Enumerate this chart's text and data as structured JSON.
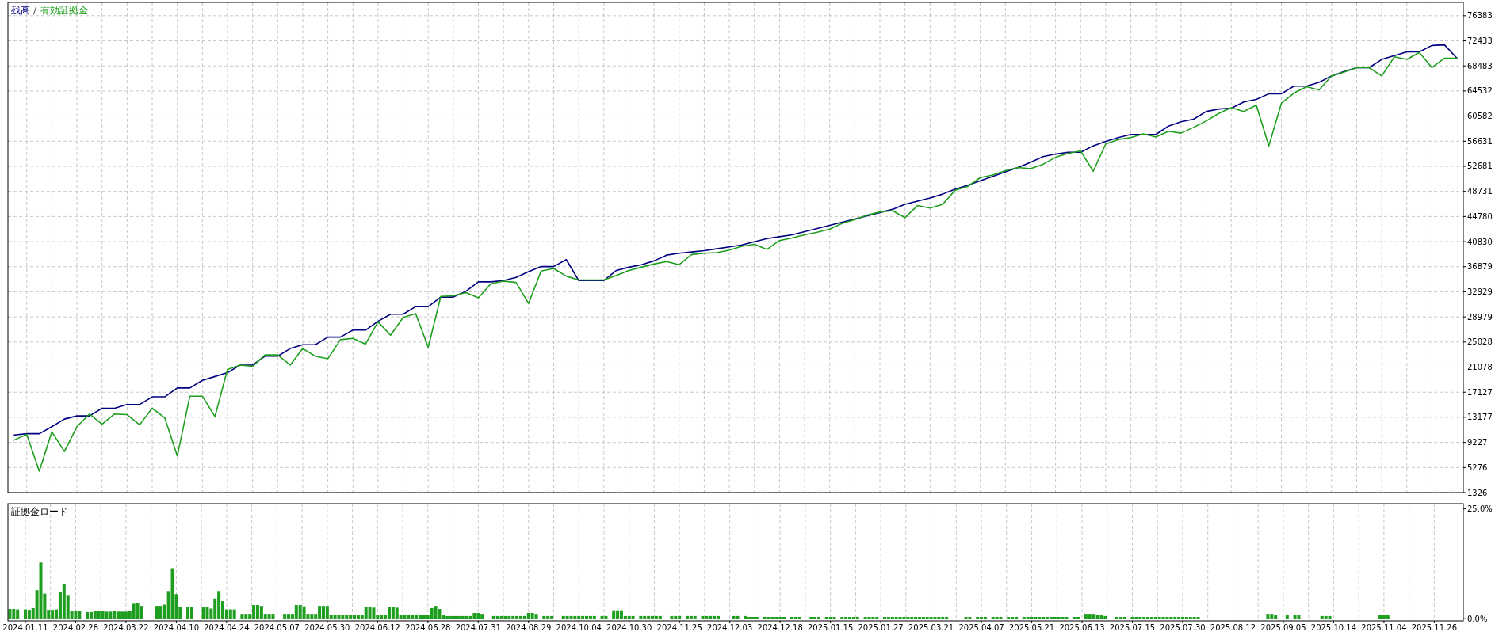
{
  "chart_data": [
    {
      "type": "line",
      "legend": "top left",
      "annotations": [
        "/"
      ],
      "grid": true,
      "tick_labels": "y",
      "ylim": [
        1326,
        78480
      ],
      "categories": [
        null,
        "2024.01.11",
        null,
        null,
        null,
        "2024.02.28",
        null,
        null,
        null,
        "2024.03.22",
        null,
        null,
        null,
        "2024.04.10",
        null,
        null,
        null,
        "2024.04.24",
        null,
        null,
        null,
        "2024.05.07",
        null,
        null,
        null,
        "2024.05.30",
        null,
        null,
        null,
        "2024.06.12",
        null,
        null,
        null,
        "2024.06.28",
        null,
        null,
        null,
        "2024.07.31",
        null,
        null,
        null,
        "2024.08.29",
        null,
        null,
        null,
        "2024.10.04",
        null,
        null,
        null,
        "2024.10.30",
        null,
        null,
        null,
        "2024.11.25",
        null,
        null,
        null,
        "2024.12.03",
        null,
        null,
        null,
        "2024.12.18",
        null,
        null,
        null,
        "2025.01.15",
        null,
        null,
        null,
        "2025.01.27",
        null,
        null,
        null,
        "2025.03.21",
        null,
        null,
        null,
        "2025.04.07",
        null,
        null,
        null,
        "2025.05.21",
        null,
        null,
        null,
        "2025.06.13",
        null,
        null,
        null,
        "2025.07.15",
        null,
        null,
        null,
        "2025.07.30",
        null,
        null,
        null,
        "2025.08.12",
        null,
        null,
        null,
        "2025.09.05",
        null,
        null,
        null,
        "2025.10.14",
        null,
        null,
        null,
        "2025.11.04",
        null,
        null,
        null,
        "2025.11.26",
        null,
        null
      ],
      "yticks": [
        1326,
        5276,
        9227,
        13177,
        17127,
        21078,
        25028,
        28979,
        32929,
        36879,
        40830,
        44780,
        48731,
        52681,
        56631,
        60582,
        64532,
        68483,
        72433,
        76383
      ],
      "series": [
        {
          "name": "残高",
          "color": "#000080",
          "values": [
            10400,
            10600,
            10600,
            11700,
            12900,
            13400,
            13400,
            14600,
            14600,
            15200,
            15200,
            16400,
            16400,
            17800,
            17800,
            19000,
            19600,
            20200,
            21400,
            21400,
            22800,
            22800,
            24000,
            24600,
            24600,
            25800,
            25800,
            26900,
            26900,
            28300,
            29400,
            29400,
            30600,
            30600,
            32100,
            32100,
            33000,
            34500,
            34500,
            34700,
            35200,
            36100,
            36900,
            36900,
            38000,
            34700,
            34700,
            34700,
            36300,
            36800,
            37200,
            37800,
            38700,
            39000,
            39200,
            39400,
            39700,
            40000,
            40300,
            40800,
            41300,
            41600,
            41900,
            42400,
            42900,
            43400,
            43900,
            44400,
            44900,
            45400,
            45900,
            46700,
            47200,
            47700,
            48300,
            49100,
            49700,
            50400,
            51100,
            51800,
            52500,
            53300,
            54200,
            54600,
            54900,
            54900,
            55900,
            56600,
            57200,
            57700,
            57700,
            57700,
            59000,
            59700,
            60100,
            61300,
            61700,
            61800,
            62800,
            63200,
            64100,
            64100,
            65300,
            65300,
            65900,
            66900,
            67600,
            68200,
            68200,
            69500,
            70100,
            70700,
            70700,
            71700,
            71800,
            69700
          ]
        },
        {
          "name": "有効証拠金",
          "color": "#1e9e1e",
          "values": [
            9600,
            10500,
            4700,
            10900,
            7800,
            11700,
            13700,
            12100,
            13700,
            13600,
            12000,
            14600,
            13100,
            7100,
            16500,
            16500,
            13300,
            20700,
            21400,
            21200,
            23000,
            23000,
            21400,
            24000,
            22800,
            22400,
            25400,
            25600,
            24700,
            28200,
            26100,
            28900,
            29500,
            24200,
            32200,
            32300,
            32800,
            32000,
            34200,
            34600,
            34400,
            31100,
            36200,
            36600,
            35400,
            34800,
            34800,
            34800,
            35500,
            36300,
            36800,
            37300,
            37700,
            37200,
            38800,
            39000,
            39100,
            39500,
            40100,
            40400,
            39600,
            41000,
            41400,
            41900,
            42300,
            42800,
            43700,
            44300,
            45000,
            45500,
            45700,
            44600,
            46500,
            46100,
            46700,
            48900,
            49500,
            50900,
            51300,
            52000,
            52500,
            52300,
            53000,
            54100,
            54700,
            55100,
            51900,
            56200,
            56900,
            57200,
            57800,
            57300,
            58200,
            57900,
            58800,
            59800,
            61000,
            61900,
            61300,
            62300,
            55900,
            62600,
            64200,
            65200,
            64700,
            66900,
            67500,
            68200,
            68200,
            66900,
            69900,
            69500,
            70600,
            68200,
            69700,
            69700
          ]
        }
      ]
    },
    {
      "type": "bar",
      "title": "証拠金ロード",
      "color": "#1e9e1e",
      "grid": "x",
      "ylim": [
        -0.5,
        26.2
      ],
      "yticks": [
        {
          "value": 0,
          "label": "0.0%"
        },
        {
          "value": 25,
          "label": "25.0%"
        }
      ],
      "categories": [
        null,
        null,
        null,
        null,
        "2024.01.11",
        null,
        null,
        null,
        null,
        null,
        null,
        null,
        null,
        null,
        null,
        null,
        null,
        "2024.02.28",
        null,
        null,
        null,
        null,
        null,
        null,
        null,
        null,
        null,
        null,
        null,
        null,
        "2024.03.22",
        null,
        null,
        null,
        null,
        null,
        null,
        null,
        null,
        null,
        null,
        null,
        null,
        "2024.04.10",
        null,
        null,
        null,
        null,
        null,
        null,
        null,
        null,
        null,
        null,
        null,
        null,
        "2024.04.24",
        null,
        null,
        null,
        null,
        null,
        null,
        null,
        null,
        null,
        null,
        null,
        null,
        "2024.05.07",
        null,
        null,
        null,
        null,
        null,
        null,
        null,
        null,
        null,
        null,
        null,
        null,
        "2024.05.30",
        null,
        null,
        null,
        null,
        null,
        null,
        null,
        null,
        null,
        null,
        null,
        null,
        "2024.06.12",
        null,
        null,
        null,
        null,
        null,
        null,
        null,
        null,
        null,
        null,
        null,
        null,
        "2024.06.28",
        null,
        null,
        null,
        null,
        null,
        null,
        null,
        null,
        null,
        null,
        null,
        null,
        "2024.07.31",
        null,
        null,
        null,
        null,
        null,
        null,
        null,
        null,
        null,
        null,
        null,
        null,
        "2024.08.29",
        null,
        null,
        null,
        null,
        null,
        null,
        null,
        null,
        null,
        null,
        null,
        null,
        "2024.10.04",
        null,
        null,
        null,
        null,
        null,
        null,
        null,
        null,
        null,
        null,
        null,
        null,
        "2024.10.30",
        null,
        null,
        null,
        null,
        null,
        null,
        null,
        null,
        null,
        null,
        null,
        null,
        "2024.11.25",
        null,
        null,
        null,
        null,
        null,
        null,
        null,
        null,
        null,
        null,
        null,
        null,
        "2024.12.03",
        null,
        null,
        null,
        null,
        null,
        null,
        null,
        null,
        null,
        null,
        null,
        null,
        "2024.12.18",
        null,
        null,
        null,
        null,
        null,
        null,
        null,
        null,
        null,
        null,
        null,
        null,
        "2025.01.15",
        null,
        null,
        null,
        null,
        null,
        null,
        null,
        null,
        null,
        null,
        null,
        null,
        "2025.01.27",
        null,
        null,
        null,
        null,
        null,
        null,
        null,
        null,
        null,
        null,
        null,
        null,
        "2025.03.21",
        null,
        null,
        null,
        null,
        null,
        null,
        null,
        null,
        null,
        null,
        null,
        null,
        "2025.04.07",
        null,
        null,
        null,
        null,
        null,
        null,
        null,
        null,
        null,
        null,
        null,
        null,
        "2025.05.21",
        null,
        null,
        null,
        null,
        null,
        null,
        null,
        null,
        null,
        null,
        null,
        null,
        "2025.06.13",
        null,
        null,
        null,
        null,
        null,
        null,
        null,
        null,
        null,
        null,
        null,
        null,
        "2025.07.15",
        null,
        null,
        null,
        null,
        null,
        null,
        null,
        null,
        null,
        null,
        null,
        null,
        "2025.07.30",
        null,
        null,
        null,
        null,
        null,
        null,
        null,
        null,
        null,
        null,
        null,
        null,
        "2025.08.12",
        null,
        null,
        null,
        null,
        null,
        null,
        null,
        null,
        null,
        null,
        null,
        null,
        "2025.09.05",
        null,
        null,
        null,
        null,
        null,
        null,
        null,
        null,
        null,
        null,
        null,
        null,
        "2025.10.14",
        null,
        null,
        null,
        null,
        null,
        null,
        null,
        null,
        null,
        null,
        null,
        null,
        "2025.11.04",
        null,
        null,
        null,
        null,
        null,
        null,
        null,
        null,
        null,
        null,
        null,
        null,
        "2025.11.26",
        null,
        null,
        null,
        null,
        null,
        null,
        null
      ],
      "values": [
        2.2,
        2.2,
        2.1,
        null,
        2.1,
        2.0,
        2.4,
        6.5,
        12.8,
        5.7,
        2.0,
        2.0,
        2.1,
        6.1,
        7.8,
        5.4,
        1.7,
        1.7,
        1.7,
        null,
        1.5,
        1.5,
        1.7,
        1.7,
        1.7,
        1.6,
        1.6,
        1.7,
        1.6,
        1.6,
        1.6,
        1.7,
        3.4,
        3.6,
        2.9,
        null,
        null,
        null,
        2.9,
        2.9,
        3.2,
        6.3,
        11.5,
        5.6,
        2.7,
        null,
        2.7,
        2.7,
        null,
        null,
        2.6,
        2.6,
        2.3,
        4.6,
        6.3,
        4.0,
        2.1,
        2.1,
        2.1,
        null,
        1.1,
        1.1,
        1.1,
        3.1,
        3.1,
        2.9,
        1.1,
        1.1,
        1.1,
        null,
        null,
        1.1,
        1.1,
        1.1,
        3.1,
        3.1,
        2.8,
        1.1,
        1.1,
        1.1,
        2.9,
        2.9,
        2.9,
        0.9,
        0.9,
        0.9,
        0.9,
        0.9,
        0.9,
        0.9,
        0.9,
        0.9,
        2.6,
        2.6,
        2.5,
        0.9,
        0.9,
        0.9,
        2.6,
        2.6,
        2.5,
        0.9,
        0.9,
        0.9,
        0.9,
        0.9,
        0.9,
        0.9,
        0.9,
        2.4,
        2.9,
        2.2,
        0.9,
        0.6,
        0.6,
        0.6,
        0.6,
        0.6,
        0.6,
        0.6,
        1.3,
        1.3,
        1.1,
        null,
        null,
        0.6,
        0.6,
        0.6,
        0.6,
        0.6,
        0.6,
        0.6,
        0.6,
        0.6,
        1.3,
        1.3,
        1.1,
        null,
        0.6,
        0.6,
        0.6,
        null,
        null,
        0.6,
        0.6,
        0.6,
        0.6,
        0.6,
        0.6,
        0.6,
        0.6,
        0.6,
        null,
        0.6,
        0.6,
        null,
        1.9,
        1.9,
        1.9,
        0.6,
        0.6,
        0.6,
        null,
        0.6,
        0.6,
        0.6,
        0.6,
        0.6,
        0.6,
        null,
        null,
        0.6,
        0.6,
        0.6,
        null,
        0.6,
        0.6,
        0.6,
        null,
        0.6,
        0.6,
        0.6,
        0.6,
        0.6,
        null,
        null,
        null,
        0.6,
        0.6,
        null,
        0.6,
        0.4,
        0.4,
        0.4,
        null,
        0.4,
        0.4,
        0.4,
        0.4,
        0.4,
        0.4,
        null,
        0.4,
        0.4,
        0.4,
        null,
        null,
        0.4,
        0.4,
        0.4,
        null,
        0.4,
        0.4,
        0.4,
        null,
        0.4,
        0.4,
        0.4,
        0.4,
        0.4,
        null,
        0.4,
        0.4,
        0.4,
        0.4,
        null,
        0.4,
        0.4,
        0.4,
        0.4,
        0.4,
        0.4,
        0.4,
        0.4,
        0.4,
        0.4,
        0.4,
        0.4,
        0.4,
        0.4,
        0.4,
        0.4,
        0.4,
        null,
        null,
        null,
        null,
        0.4,
        0.4,
        null,
        0.4,
        0.4,
        0.4,
        null,
        0.4,
        0.4,
        0.4,
        null,
        0.4,
        0.4,
        0.4,
        null,
        0.4,
        0.4,
        0.4,
        0.4,
        0.4,
        0.4,
        0.4,
        0.4,
        0.4,
        0.4,
        0.4,
        0.4,
        null,
        0.4,
        0.4,
        null,
        1.1,
        1.1,
        1.1,
        0.9,
        0.9,
        0.6,
        null,
        null,
        0.4,
        0.4,
        0.4,
        null,
        0.4,
        0.4,
        0.4,
        0.4,
        0.4,
        0.4,
        0.4,
        0.4,
        0.4,
        0.4,
        0.4,
        0.4,
        0.4,
        0.4,
        0.4,
        0.4,
        0.4,
        0.4,
        null,
        null,
        null,
        null,
        null,
        null,
        null,
        null,
        null,
        null,
        null,
        null,
        null,
        null,
        null,
        null,
        null,
        1.1,
        1.1,
        0.9,
        null,
        null,
        0.9,
        null,
        0.9,
        0.9,
        null,
        null,
        null,
        null,
        null,
        0.6,
        0.6,
        0.6,
        null,
        null,
        null,
        null,
        null,
        null,
        null,
        null,
        null,
        null,
        null,
        null,
        0.9,
        0.9,
        0.9,
        null,
        null,
        null,
        null,
        null,
        null,
        null,
        null,
        null,
        null,
        null,
        null,
        null,
        null,
        null,
        null,
        null,
        null,
        null
      ]
    }
  ]
}
